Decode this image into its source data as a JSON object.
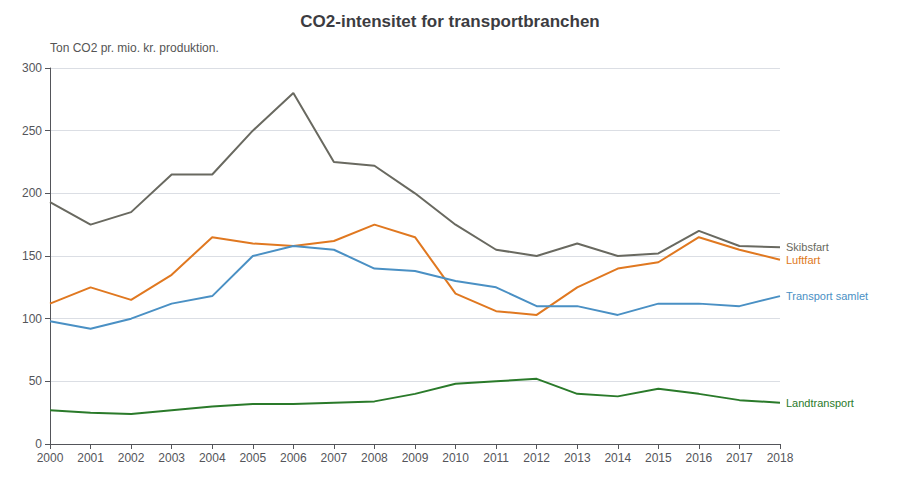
{
  "chart_data": {
    "type": "line",
    "title": "CO2-intensitet for transportbranchen",
    "ylabel": "Ton CO2 pr. mio. kr. produktion.",
    "x": [
      2000,
      2001,
      2002,
      2003,
      2004,
      2005,
      2006,
      2007,
      2008,
      2009,
      2010,
      2011,
      2012,
      2013,
      2014,
      2015,
      2016,
      2017,
      2018
    ],
    "series": [
      {
        "name": "Skibsfart",
        "color": "#696960",
        "values": [
          193,
          175,
          185,
          215,
          215,
          250,
          280,
          225,
          222,
          200,
          175,
          155,
          150,
          160,
          150,
          152,
          170,
          158,
          157
        ]
      },
      {
        "name": "Luftfart",
        "color": "#e07820",
        "values": [
          112,
          125,
          115,
          135,
          165,
          160,
          158,
          162,
          175,
          165,
          120,
          106,
          103,
          125,
          140,
          145,
          165,
          155,
          147
        ]
      },
      {
        "name": "Transport samlet",
        "color": "#4a90c4",
        "values": [
          98,
          92,
          100,
          112,
          118,
          150,
          158,
          155,
          140,
          138,
          130,
          125,
          110,
          110,
          103,
          112,
          112,
          110,
          118
        ]
      },
      {
        "name": "Landtransport",
        "color": "#2a7a2a",
        "values": [
          27,
          25,
          24,
          27,
          30,
          32,
          32,
          33,
          34,
          40,
          48,
          50,
          52,
          40,
          38,
          44,
          40,
          35,
          33
        ]
      }
    ],
    "xlim": [
      2000,
      2018
    ],
    "xticks": [
      2000,
      2001,
      2002,
      2003,
      2004,
      2005,
      2006,
      2007,
      2008,
      2009,
      2010,
      2011,
      2012,
      2013,
      2014,
      2015,
      2016,
      2017,
      2018
    ],
    "ylim": [
      0,
      300
    ],
    "yticks": [
      0,
      50,
      100,
      150,
      200,
      250,
      300
    ],
    "grid": true
  }
}
